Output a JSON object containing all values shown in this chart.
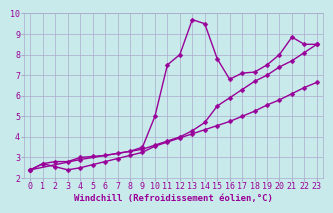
{
  "title": "",
  "xlabel": "Windchill (Refroidissement éolien,°C)",
  "ylabel": "",
  "bg_color": "#c8eaea",
  "grid_color": "#aaaacc",
  "line_color": "#990099",
  "marker_color": "#990099",
  "xlim": [
    -0.5,
    23.5
  ],
  "ylim": [
    2,
    10
  ],
  "xticks": [
    0,
    1,
    2,
    3,
    4,
    5,
    6,
    7,
    8,
    9,
    10,
    11,
    12,
    13,
    14,
    15,
    16,
    17,
    18,
    19,
    20,
    21,
    22,
    23
  ],
  "yticks": [
    2,
    3,
    4,
    5,
    6,
    7,
    8,
    9,
    10
  ],
  "line1_x": [
    0,
    1,
    2,
    3,
    4,
    5,
    6,
    7,
    8,
    9,
    10,
    11,
    12,
    13,
    14,
    15,
    16,
    17,
    18,
    19,
    20,
    21,
    22,
    23
  ],
  "line1_y": [
    2.4,
    2.7,
    2.8,
    2.8,
    3.0,
    3.05,
    3.1,
    3.2,
    3.3,
    3.5,
    5.0,
    7.5,
    8.0,
    9.7,
    9.5,
    7.8,
    6.8,
    7.1,
    7.15,
    7.5,
    8.0,
    8.85,
    8.5,
    8.5
  ],
  "line2_x": [
    0,
    1,
    2,
    3,
    4,
    5,
    6,
    7,
    8,
    9,
    10,
    11,
    12,
    13,
    14,
    15,
    16,
    17,
    18,
    19,
    20,
    21,
    22,
    23
  ],
  "line2_y": [
    2.4,
    2.7,
    2.55,
    2.4,
    2.5,
    2.65,
    2.8,
    2.95,
    3.1,
    3.25,
    3.55,
    3.75,
    3.95,
    4.15,
    4.35,
    4.55,
    4.75,
    5.0,
    5.25,
    5.55,
    5.8,
    6.1,
    6.4,
    6.65
  ],
  "line3_x": [
    0,
    4,
    9,
    10,
    11,
    12,
    13,
    14,
    15,
    16,
    17,
    18,
    19,
    20,
    21,
    22,
    23
  ],
  "line3_y": [
    2.4,
    2.9,
    3.4,
    3.6,
    3.8,
    4.0,
    4.3,
    4.7,
    5.5,
    5.9,
    6.3,
    6.7,
    7.0,
    7.4,
    7.7,
    8.1,
    8.5
  ],
  "font_color": "#990099",
  "tick_fontsize": 6,
  "marker_size": 2.5,
  "line_width": 1.0
}
